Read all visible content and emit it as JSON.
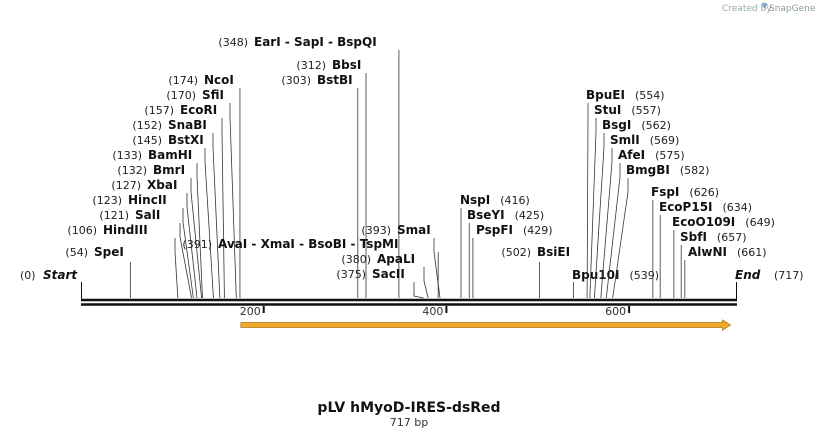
{
  "credit": {
    "prefix": "Created by",
    "brand": "SnapGene"
  },
  "map": {
    "name": "pLV hMyoD-IRES-dsRed",
    "length_label": "717 bp",
    "length": 717,
    "start_label": "Start",
    "end_label": "End",
    "start_pos_label": "(0)",
    "end_pos_label": "(717)",
    "ticks": [
      {
        "pos": 200,
        "label": "200"
      },
      {
        "pos": 400,
        "label": "400"
      },
      {
        "pos": 600,
        "label": "600"
      }
    ],
    "feature_arrow": {
      "start": 175,
      "end": 711,
      "color": "#f0a830",
      "direction": "forward"
    },
    "sites": [
      {
        "name": "SpeI",
        "pos": 54,
        "pos_label": "(54)",
        "side": "left"
      },
      {
        "name": "HindIII",
        "pos": 106,
        "pos_label": "(106)",
        "side": "left"
      },
      {
        "name": "SalI",
        "pos": 121,
        "pos_label": "(121)",
        "side": "left"
      },
      {
        "name": "HincII",
        "pos": 123,
        "pos_label": "(123)",
        "side": "left"
      },
      {
        "name": "XbaI",
        "pos": 127,
        "pos_label": "(127)",
        "side": "left"
      },
      {
        "name": "BmrI",
        "pos": 132,
        "pos_label": "(132)",
        "side": "left"
      },
      {
        "name": "BamHI",
        "pos": 133,
        "pos_label": "(133)",
        "side": "left"
      },
      {
        "name": "BstXI",
        "pos": 145,
        "pos_label": "(145)",
        "side": "left"
      },
      {
        "name": "SnaBI",
        "pos": 152,
        "pos_label": "(152)",
        "side": "left"
      },
      {
        "name": "EcoRI",
        "pos": 157,
        "pos_label": "(157)",
        "side": "left"
      },
      {
        "name": "SfiI",
        "pos": 170,
        "pos_label": "(170)",
        "side": "left"
      },
      {
        "name": "NcoI",
        "pos": 174,
        "pos_label": "(174)",
        "side": "left"
      },
      {
        "name": "AvaI - XmaI - BsoBI - TspMI",
        "pos": 391,
        "pos_label": "(391)",
        "side": "left"
      },
      {
        "name": "EarI - SapI - BspQI",
        "pos": 348,
        "pos_label": "(348)",
        "side": "left"
      },
      {
        "name": "BbsI",
        "pos": 312,
        "pos_label": "(312)",
        "side": "left"
      },
      {
        "name": "BstBI",
        "pos": 303,
        "pos_label": "(303)",
        "side": "left"
      },
      {
        "name": "SmaI",
        "pos": 393,
        "pos_label": "(393)",
        "side": "left"
      },
      {
        "name": "ApaLI",
        "pos": 380,
        "pos_label": "(380)",
        "side": "left"
      },
      {
        "name": "SacII",
        "pos": 375,
        "pos_label": "(375)",
        "side": "left"
      },
      {
        "name": "NspI",
        "pos": 416,
        "pos_label": "(416)",
        "side": "right"
      },
      {
        "name": "BseYI",
        "pos": 425,
        "pos_label": "(425)",
        "side": "right"
      },
      {
        "name": "PspFI",
        "pos": 429,
        "pos_label": "(429)",
        "side": "right"
      },
      {
        "name": "BsiEI",
        "pos": 502,
        "pos_label": "(502)",
        "side": "right"
      },
      {
        "name": "Bpu10I",
        "pos": 539,
        "pos_label": "(539)",
        "side": "right"
      },
      {
        "name": "BpuEI",
        "pos": 554,
        "pos_label": "(554)",
        "side": "right"
      },
      {
        "name": "StuI",
        "pos": 557,
        "pos_label": "(557)",
        "side": "right"
      },
      {
        "name": "BsgI",
        "pos": 562,
        "pos_label": "(562)",
        "side": "right"
      },
      {
        "name": "SmlI",
        "pos": 569,
        "pos_label": "(569)",
        "side": "right"
      },
      {
        "name": "AfeI",
        "pos": 575,
        "pos_label": "(575)",
        "side": "right"
      },
      {
        "name": "BmgBI",
        "pos": 582,
        "pos_label": "(582)",
        "side": "right"
      },
      {
        "name": "FspI",
        "pos": 626,
        "pos_label": "(626)",
        "side": "right"
      },
      {
        "name": "EcoP15I",
        "pos": 634,
        "pos_label": "(634)",
        "side": "right"
      },
      {
        "name": "EcoO109I",
        "pos": 649,
        "pos_label": "(649)",
        "side": "right"
      },
      {
        "name": "SbfI",
        "pos": 657,
        "pos_label": "(657)",
        "side": "right"
      },
      {
        "name": "AlwNI",
        "pos": 661,
        "pos_label": "(661)",
        "side": "right"
      }
    ]
  }
}
